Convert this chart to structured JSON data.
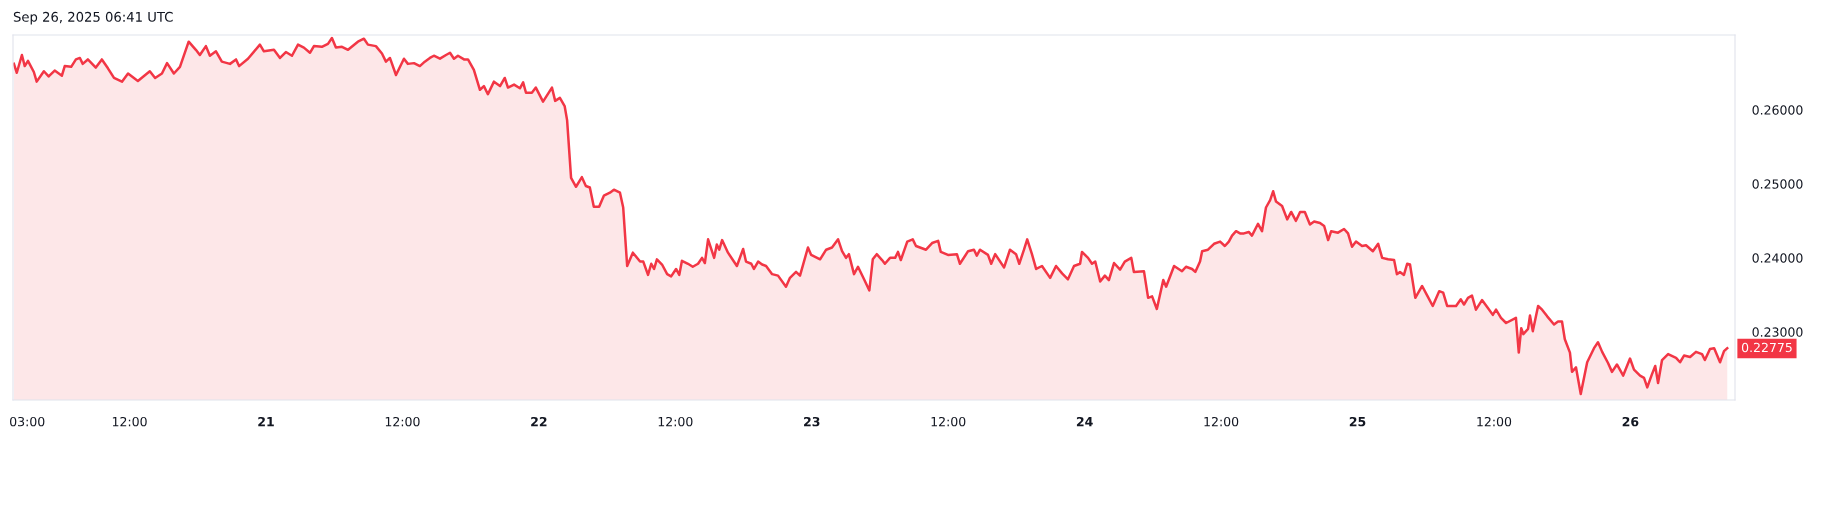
{
  "chart_data": {
    "type": "area",
    "title": "Sep 26, 2025 06:41 UTC",
    "xlim": [
      "2025-09-20T01:45",
      "2025-09-26T09:12"
    ],
    "ylim": [
      0.2208,
      0.2701
    ],
    "xticks": [
      {
        "value": "2025-09-20T03:00",
        "label": "03:00"
      },
      {
        "value": "2025-09-20T12:00",
        "label": "12:00"
      },
      {
        "value": "2025-09-21",
        "label": "21"
      },
      {
        "value": "2025-09-21T12:00",
        "label": "12:00"
      },
      {
        "value": "2025-09-22",
        "label": "22"
      },
      {
        "value": "2025-09-22T12:00",
        "label": "12:00"
      },
      {
        "value": "2025-09-23",
        "label": "23"
      },
      {
        "value": "2025-09-23T12:00",
        "label": "12:00"
      },
      {
        "value": "2025-09-24",
        "label": "24"
      },
      {
        "value": "2025-09-24T12:00",
        "label": "12:00"
      },
      {
        "value": "2025-09-25",
        "label": "25"
      },
      {
        "value": "2025-09-25T12:00",
        "label": "12:00"
      },
      {
        "value": "2025-09-26",
        "label": "26"
      }
    ],
    "yticks": [
      {
        "value": 0.23,
        "label": "0.23000"
      },
      {
        "value": 0.24,
        "label": "0.24000"
      },
      {
        "value": 0.25,
        "label": "0.25000"
      },
      {
        "value": 0.26,
        "label": "0.26000"
      }
    ],
    "annotations": [
      {
        "text": "0.22775",
        "x": "2025-09-26T08:31",
        "y": 0.22775
      }
    ],
    "series": [
      {
        "color": "#f23645",
        "x": [
          "2025-09-20T01:50",
          "2025-09-20T02:05",
          "2025-09-20T02:32",
          "2025-09-20T02:47",
          "2025-09-20T03:04",
          "2025-09-20T03:35",
          "2025-09-20T03:50",
          "2025-09-20T04:28",
          "2025-09-20T04:53",
          "2025-09-20T05:25",
          "2025-09-20T06:03",
          "2025-09-20T06:18",
          "2025-09-20T06:52",
          "2025-09-20T07:17",
          "2025-09-20T07:38",
          "2025-09-20T07:53",
          "2025-09-20T08:20",
          "2025-09-20T09:02",
          "2025-09-20T09:34",
          "2025-09-20T10:06",
          "2025-09-20T10:38",
          "2025-09-20T11:20",
          "2025-09-20T11:52",
          "2025-09-20T12:44",
          "2025-09-20T13:47",
          "2025-09-20T14:15",
          "2025-09-20T14:51",
          "2025-09-20T15:18",
          "2025-09-20T15:54",
          "2025-09-20T16:26",
          "2025-09-20T17:12",
          "2025-09-20T17:50",
          "2025-09-20T18:11",
          "2025-09-20T18:43",
          "2025-09-20T19:04",
          "2025-09-20T19:36",
          "2025-09-20T20:07",
          "2025-09-20T20:50",
          "2025-09-20T21:22",
          "2025-09-20T21:38",
          "2025-09-20T22:25",
          "2025-09-20T23:28",
          "2025-09-20T23:49",
          "2025-09-21T00:42",
          "2025-09-21T01:14",
          "2025-09-21T01:45",
          "2025-09-21T02:17",
          "2025-09-21T02:49",
          "2025-09-21T03:20",
          "2025-09-21T03:52",
          "2025-09-21T04:13",
          "2025-09-21T04:55",
          "2025-09-21T05:27",
          "2025-09-21T05:48",
          "2025-09-21T06:09",
          "2025-09-21T06:41",
          "2025-09-21T07:13",
          "2025-09-21T08:05",
          "2025-09-21T08:37",
          "2025-09-21T08:58",
          "2025-09-21T09:40",
          "2025-09-21T10:12",
          "2025-09-21T10:33",
          "2025-09-21T10:54",
          "2025-09-21T11:26",
          "2025-09-21T12:08",
          "2025-09-21T12:29",
          "2025-09-21T13:01",
          "2025-09-21T13:32",
          "2025-09-21T13:58",
          "2025-09-21T14:25",
          "2025-09-21T14:46",
          "2025-09-21T15:18",
          "2025-09-21T15:50",
          "2025-09-21T16:11",
          "2025-09-21T16:32",
          "2025-09-21T16:53",
          "2025-09-21T17:25",
          "2025-09-21T17:46",
          "2025-09-21T18:17",
          "2025-09-21T18:49",
          "2025-09-21T19:10",
          "2025-09-21T19:31",
          "2025-09-21T20:03",
          "2025-09-21T20:35",
          "2025-09-21T21:00",
          "2025-09-21T21:17",
          "2025-09-21T21:49",
          "2025-09-21T22:20",
          "2025-09-21T22:37",
          "2025-09-21T22:52",
          "2025-09-21T23:23",
          "2025-09-21T23:44",
          "2025-09-22T00:22",
          "2025-09-22T01:09",
          "2025-09-22T01:26",
          "2025-09-22T01:51",
          "2025-09-22T02:16",
          "2025-09-22T02:29",
          "2025-09-22T02:50",
          "2025-09-22T03:16",
          "2025-09-22T03:47",
          "2025-09-22T04:08",
          "2025-09-22T04:29",
          "2025-09-22T04:50",
          "2025-09-22T05:18",
          "2025-09-22T05:43",
          "2025-09-22T06:15",
          "2025-09-22T06:36",
          "2025-09-22T07:08",
          "2025-09-22T07:25",
          "2025-09-22T07:46",
          "2025-09-22T08:16",
          "2025-09-22T08:54",
          "2025-09-22T09:11",
          "2025-09-22T09:36",
          "2025-09-22T09:53",
          "2025-09-22T10:08",
          "2025-09-22T10:23",
          "2025-09-22T10:50",
          "2025-09-22T11:17",
          "2025-09-22T11:38",
          "2025-09-22T12:04",
          "2025-09-22T12:21",
          "2025-09-22T12:35",
          "2025-09-22T13:07",
          "2025-09-22T13:32",
          "2025-09-22T14:00",
          "2025-09-22T14:21",
          "2025-09-22T14:36",
          "2025-09-22T14:53",
          "2025-09-22T15:25",
          "2025-09-22T15:39",
          "2025-09-22T15:52",
          "2025-09-22T16:07",
          "2025-09-22T16:38",
          "2025-09-22T17:25",
          "2025-09-22T17:58",
          "2025-09-22T18:13",
          "2025-09-22T18:41",
          "2025-09-22T18:55",
          "2025-09-22T19:17",
          "2025-09-22T19:38",
          "2025-09-22T19:59",
          "2025-09-22T20:31",
          "2025-09-22T21:02",
          "2025-09-22T21:44",
          "2025-09-22T22:05",
          "2025-09-22T22:37",
          "2025-09-22T22:58",
          "2025-09-22T23:40",
          "2025-09-22T23:57",
          "2025-09-23T00:44",
          "2025-09-23T01:16",
          "2025-09-23T01:47",
          "2025-09-23T02:19",
          "2025-09-23T02:40",
          "2025-09-23T03:01",
          "2025-09-23T03:16",
          "2025-09-23T03:43",
          "2025-09-23T04:04",
          "2025-09-23T04:36",
          "2025-09-23T05:04",
          "2025-09-23T05:22",
          "2025-09-23T05:43",
          "2025-09-23T06:11",
          "2025-09-23T06:26",
          "2025-09-23T06:53",
          "2025-09-23T07:20",
          "2025-09-23T07:35",
          "2025-09-23T07:50",
          "2025-09-23T08:24",
          "2025-09-23T08:53",
          "2025-09-23T09:10",
          "2025-09-23T10:03",
          "2025-09-23T10:35",
          "2025-09-23T11:07",
          "2025-09-23T11:21",
          "2025-09-23T11:59",
          "2025-09-23T12:46",
          "2025-09-23T13:02",
          "2025-09-23T13:45",
          "2025-09-23T14:16",
          "2025-09-23T14:31",
          "2025-09-23T14:48",
          "2025-09-23T15:30",
          "2025-09-23T15:47",
          "2025-09-23T16:08",
          "2025-09-23T16:55",
          "2025-09-23T17:26",
          "2025-09-23T17:58",
          "2025-09-23T18:15",
          "2025-09-23T18:40",
          "2025-09-23T18:57",
          "2025-09-23T19:22",
          "2025-09-23T19:44",
          "2025-09-23T20:15",
          "2025-09-23T20:58",
          "2025-09-23T21:29",
          "2025-09-23T22:01",
          "2025-09-23T22:32",
          "2025-09-23T23:04",
          "2025-09-23T23:36",
          "2025-09-23T23:46",
          "2025-09-24T00:18",
          "2025-09-24T00:39",
          "2025-09-24T00:56",
          "2025-09-24T01:22",
          "2025-09-24T01:47",
          "2025-09-24T02:08",
          "2025-09-24T02:35",
          "2025-09-24T03:07",
          "2025-09-24T03:32",
          "2025-09-24T04:06",
          "2025-09-24T04:20",
          "2025-09-24T05:13",
          "2025-09-24T05:35",
          "2025-09-24T05:56",
          "2025-09-24T06:21",
          "2025-09-24T06:55",
          "2025-09-24T07:10",
          "2025-09-24T07:52",
          "2025-09-24T08:34",
          "2025-09-24T08:55",
          "2025-09-24T09:27",
          "2025-09-24T09:44",
          "2025-09-24T10:09",
          "2025-09-24T10:20",
          "2025-09-24T10:51",
          "2025-09-24T11:23",
          "2025-09-24T11:55",
          "2025-09-24T12:20",
          "2025-09-24T12:41",
          "2025-09-24T12:58",
          "2025-09-24T13:19",
          "2025-09-24T13:40",
          "2025-09-24T14:01",
          "2025-09-24T14:26",
          "2025-09-24T14:43",
          "2025-09-24T15:15",
          "2025-09-24T15:36",
          "2025-09-24T15:57",
          "2025-09-24T16:19",
          "2025-09-24T16:35",
          "2025-09-24T16:50",
          "2025-09-24T17:22",
          "2025-09-24T17:49",
          "2025-09-24T18:10",
          "2025-09-24T18:35",
          "2025-09-24T18:57",
          "2025-09-24T19:22",
          "2025-09-24T19:49",
          "2025-09-24T20:11",
          "2025-09-24T20:42",
          "2025-09-24T21:04",
          "2025-09-24T21:25",
          "2025-09-24T21:41",
          "2025-09-24T22:17",
          "2025-09-24T22:49",
          "2025-09-24T23:10",
          "2025-09-24T23:31",
          "2025-09-24T23:52",
          "2025-09-25T00:24",
          "2025-09-25T00:45",
          "2025-09-25T01:21",
          "2025-09-25T01:49",
          "2025-09-25T02:10",
          "2025-09-25T02:41",
          "2025-09-25T03:13",
          "2025-09-25T03:28",
          "2025-09-25T03:44",
          "2025-09-25T04:05",
          "2025-09-25T04:22",
          "2025-09-25T04:37",
          "2025-09-25T05:05",
          "2025-09-25T05:41",
          "2025-09-25T06:08",
          "2025-09-25T06:37",
          "2025-09-25T07:11",
          "2025-09-25T07:32",
          "2025-09-25T07:53",
          "2025-09-25T08:40",
          "2025-09-25T09:05",
          "2025-09-25T09:22",
          "2025-09-25T09:43",
          "2025-09-25T10:04",
          "2025-09-25T10:25",
          "2025-09-25T10:57",
          "2025-09-25T11:29",
          "2025-09-25T11:54",
          "2025-09-25T12:11",
          "2025-09-25T12:37",
          "2025-09-25T13:04",
          "2025-09-25T13:56",
          "2025-09-25T14:11",
          "2025-09-25T14:24",
          "2025-09-25T14:35",
          "2025-09-25T15:00",
          "2025-09-25T15:10",
          "2025-09-25T15:25",
          "2025-09-25T15:53",
          "2025-09-25T16:14",
          "2025-09-25T16:41",
          "2025-09-25T17:17",
          "2025-09-25T17:38",
          "2025-09-25T17:59",
          "2025-09-25T18:14",
          "2025-09-25T18:41",
          "2025-09-25T18:52",
          "2025-09-25T19:13",
          "2025-09-25T19:38",
          "2025-09-25T20:12",
          "2025-09-25T20:48",
          "2025-09-25T21:09",
          "2025-09-25T21:31",
          "2025-09-25T22:02",
          "2025-09-25T22:23",
          "2025-09-25T22:49",
          "2025-09-25T23:22",
          "2025-09-25T23:58",
          "2025-09-26T00:19",
          "2025-09-26T00:51",
          "2025-09-26T01:12",
          "2025-09-26T01:29",
          "2025-09-26T01:54",
          "2025-09-26T02:11",
          "2025-09-26T02:26",
          "2025-09-26T02:47",
          "2025-09-26T03:19",
          "2025-09-26T04:01",
          "2025-09-26T04:22",
          "2025-09-26T04:43",
          "2025-09-26T05:15",
          "2025-09-26T05:46",
          "2025-09-26T06:18",
          "2025-09-26T06:33",
          "2025-09-26T07:00",
          "2025-09-26T07:22",
          "2025-09-26T07:53",
          "2025-09-26T08:14",
          "2025-09-26T08:31"
        ],
        "values": [
          0.2662,
          0.265,
          0.2674,
          0.2659,
          0.2666,
          0.2651,
          0.2638,
          0.2652,
          0.2645,
          0.2653,
          0.2646,
          0.2659,
          0.2658,
          0.2668,
          0.267,
          0.2662,
          0.2668,
          0.2657,
          0.2668,
          0.2656,
          0.2643,
          0.2638,
          0.2649,
          0.2639,
          0.2652,
          0.2643,
          0.2649,
          0.2663,
          0.2649,
          0.2658,
          0.2692,
          0.2681,
          0.2674,
          0.2686,
          0.2673,
          0.2679,
          0.2665,
          0.2662,
          0.2668,
          0.2659,
          0.2669,
          0.2688,
          0.2679,
          0.2681,
          0.267,
          0.2678,
          0.2673,
          0.2688,
          0.2684,
          0.2677,
          0.2686,
          0.2685,
          0.2689,
          0.2697,
          0.2684,
          0.2685,
          0.2681,
          0.2692,
          0.2696,
          0.2688,
          0.2686,
          0.2676,
          0.2665,
          0.267,
          0.2647,
          0.2669,
          0.2662,
          0.2663,
          0.2659,
          0.2665,
          0.267,
          0.2673,
          0.2669,
          0.2674,
          0.2677,
          0.2669,
          0.2673,
          0.2668,
          0.2668,
          0.2654,
          0.2627,
          0.2632,
          0.2621,
          0.2638,
          0.2632,
          0.2643,
          0.263,
          0.2634,
          0.2629,
          0.2637,
          0.2623,
          0.2623,
          0.263,
          0.2611,
          0.263,
          0.2612,
          0.2616,
          0.2605,
          0.2586,
          0.2508,
          0.2496,
          0.2509,
          0.2497,
          0.2495,
          0.2469,
          0.2469,
          0.2484,
          0.2488,
          0.2492,
          0.2488,
          0.2468,
          0.2389,
          0.2407,
          0.2395,
          0.2395,
          0.2377,
          0.2392,
          0.2385,
          0.2398,
          0.2391,
          0.2378,
          0.2375,
          0.2385,
          0.2377,
          0.2396,
          0.2392,
          0.2388,
          0.2392,
          0.24,
          0.2393,
          0.2425,
          0.24,
          0.2418,
          0.2411,
          0.2424,
          0.2407,
          0.2389,
          0.2412,
          0.2395,
          0.2392,
          0.2385,
          0.2395,
          0.2391,
          0.2389,
          0.2378,
          0.2376,
          0.2361,
          0.2373,
          0.2381,
          0.2376,
          0.2414,
          0.2404,
          0.2398,
          0.2411,
          0.2414,
          0.2425,
          0.2409,
          0.24,
          0.2405,
          0.2378,
          0.2388,
          0.2371,
          0.2356,
          0.2398,
          0.2405,
          0.2397,
          0.2392,
          0.24,
          0.24,
          0.2408,
          0.2397,
          0.2422,
          0.2425,
          0.2416,
          0.2411,
          0.242,
          0.2423,
          0.2408,
          0.2404,
          0.2405,
          0.2392,
          0.2409,
          0.2411,
          0.2403,
          0.2411,
          0.2404,
          0.2392,
          0.2405,
          0.2387,
          0.2411,
          0.2405,
          0.2392,
          0.2411,
          0.2425,
          0.2405,
          0.2385,
          0.2389,
          0.2373,
          0.2389,
          0.2379,
          0.2371,
          0.2389,
          0.2392,
          0.2408,
          0.24,
          0.2392,
          0.2395,
          0.2368,
          0.2376,
          0.237,
          0.2393,
          0.2384,
          0.2395,
          0.24,
          0.2381,
          0.2382,
          0.2346,
          0.2348,
          0.2331,
          0.237,
          0.2361,
          0.2389,
          0.2382,
          0.2388,
          0.2385,
          0.2381,
          0.2395,
          0.2409,
          0.2411,
          0.2419,
          0.2422,
          0.2416,
          0.2422,
          0.243,
          0.2436,
          0.2433,
          0.2433,
          0.2435,
          0.243,
          0.2446,
          0.2436,
          0.2468,
          0.2478,
          0.249,
          0.2476,
          0.247,
          0.2452,
          0.2462,
          0.245,
          0.2462,
          0.2462,
          0.2445,
          0.2449,
          0.2447,
          0.2443,
          0.2424,
          0.2436,
          0.2434,
          0.2439,
          0.2433,
          0.2415,
          0.2422,
          0.2416,
          0.2417,
          0.2409,
          0.2419,
          0.24,
          0.2398,
          0.2397,
          0.2378,
          0.2381,
          0.2377,
          0.2392,
          0.2391,
          0.2346,
          0.2362,
          0.2349,
          0.2335,
          0.2355,
          0.2353,
          0.2335,
          0.2335,
          0.2344,
          0.2337,
          0.2346,
          0.2349,
          0.233,
          0.2343,
          0.2332,
          0.2323,
          0.233,
          0.2319,
          0.2312,
          0.2319,
          0.2272,
          0.2305,
          0.2297,
          0.2304,
          0.2322,
          0.2301,
          0.2335,
          0.233,
          0.2321,
          0.231,
          0.2314,
          0.2314,
          0.229,
          0.2272,
          0.2246,
          0.2252,
          0.2216,
          0.2259,
          0.2278,
          0.2286,
          0.2273,
          0.2258,
          0.2246,
          0.2256,
          0.2241,
          0.2264,
          0.2249,
          0.2241,
          0.2238,
          0.2225,
          0.2243,
          0.2254,
          0.2231,
          0.2262,
          0.227,
          0.2265,
          0.2259,
          0.2268,
          0.2266,
          0.2273,
          0.227,
          0.2262,
          0.2277,
          0.2278,
          0.2259,
          0.2274,
          0.2278
        ]
      }
    ]
  }
}
